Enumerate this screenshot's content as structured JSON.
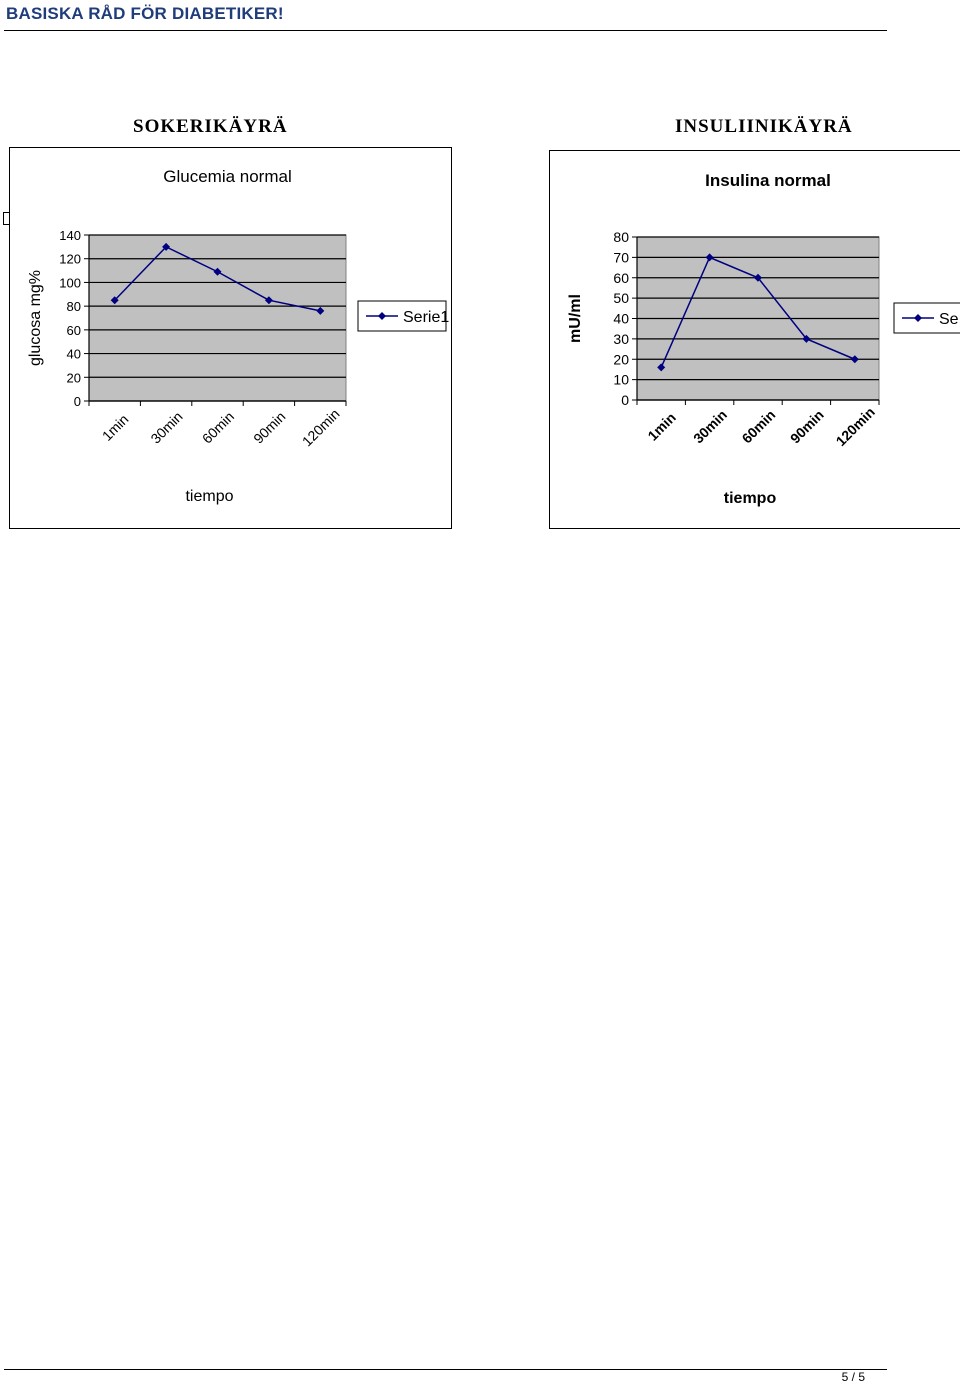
{
  "header": {
    "title": "BASISKA RÅD FÖR DIABETIKER!"
  },
  "footer": {
    "page": "5 / 5"
  },
  "headings": {
    "left": "SOKERIKÄYRÄ",
    "right": "INSULIINIKÄYRÄ"
  },
  "colors": {
    "series": "#000080",
    "plot_area": "#c0c0c0",
    "gridline": "#000000",
    "header_text": "#1f3d7a"
  },
  "chart_data": [
    {
      "type": "line",
      "title": "Glucemia normal",
      "xlabel": "tiempo",
      "ylabel": "glucosa mg%",
      "categories": [
        "1min",
        "30min",
        "60min",
        "90min",
        "120min"
      ],
      "ylim": [
        0,
        140
      ],
      "yticks": [
        0,
        20,
        40,
        60,
        80,
        100,
        120,
        140
      ],
      "series": [
        {
          "name": "Serie1",
          "values": [
            85,
            130,
            109,
            85,
            76
          ]
        }
      ],
      "legend": "right",
      "grid": true
    },
    {
      "type": "line",
      "title": "Insulina normal",
      "xlabel": "tiempo",
      "ylabel": "mU/ml",
      "categories": [
        "1min",
        "30min",
        "60min",
        "90min",
        "120min"
      ],
      "ylim": [
        0,
        80
      ],
      "yticks": [
        0,
        10,
        20,
        30,
        40,
        50,
        60,
        70,
        80
      ],
      "series": [
        {
          "name": "Se",
          "values": [
            16,
            70,
            60,
            30,
            20
          ]
        }
      ],
      "legend": "right",
      "grid": true
    }
  ]
}
